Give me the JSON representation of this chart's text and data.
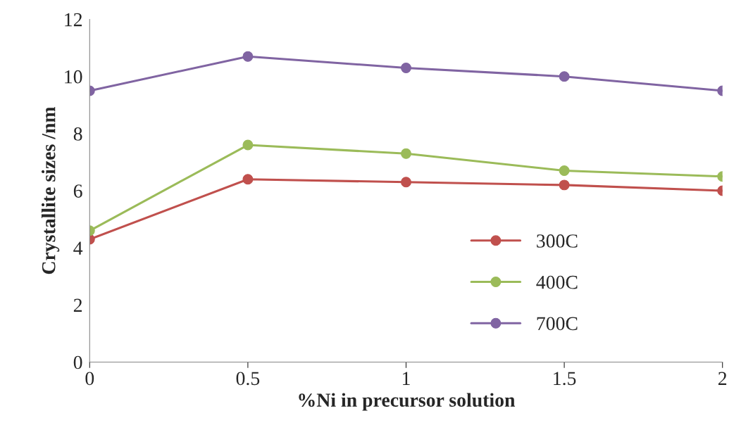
{
  "chart_data": {
    "type": "line",
    "xlabel": "%Ni in precursor solution",
    "ylabel": "Crystallite sizes /nm",
    "x": [
      0,
      0.5,
      1,
      1.5,
      2
    ],
    "series": [
      {
        "name": "300C",
        "color": "#c0504d",
        "values": [
          4.3,
          6.4,
          6.3,
          6.2,
          6.0
        ]
      },
      {
        "name": "400C",
        "color": "#9bbb59",
        "values": [
          4.6,
          7.6,
          7.3,
          6.7,
          6.5
        ]
      },
      {
        "name": "700C",
        "color": "#8064a2",
        "values": [
          9.5,
          10.7,
          10.3,
          10.0,
          9.5
        ]
      }
    ],
    "xlim": [
      0,
      2
    ],
    "xticks": [
      0,
      0.5,
      1,
      1.5,
      2
    ],
    "ylim": [
      0,
      12
    ],
    "yticks": [
      0,
      2,
      4,
      6,
      8,
      10,
      12
    ],
    "grid": false,
    "legend": "lower right",
    "marker": "circle",
    "line_style": "solid"
  }
}
